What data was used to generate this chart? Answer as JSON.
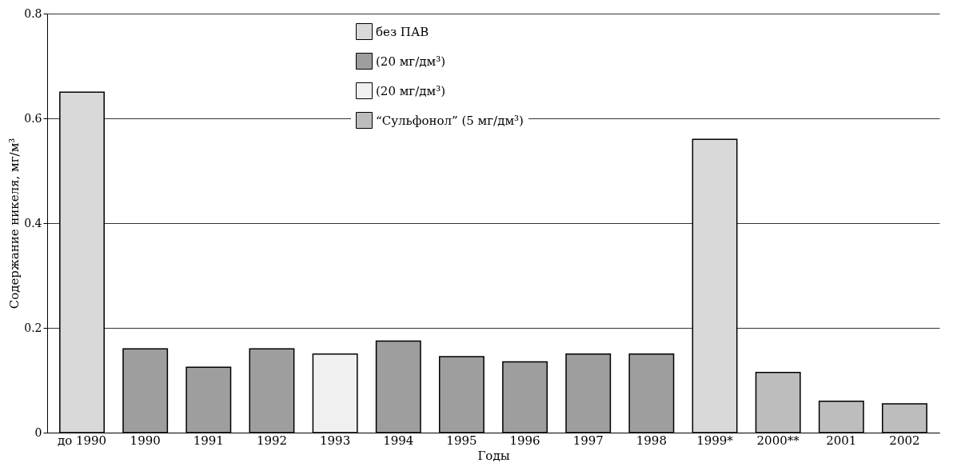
{
  "chart_data": {
    "type": "bar",
    "xlabel": "Годы",
    "ylabel": "Содержание никеля, мг/м³",
    "categories": [
      "до 1990",
      "1990",
      "1991",
      "1992",
      "1993",
      "1994",
      "1995",
      "1996",
      "1997",
      "1998",
      "1999*",
      "2000**",
      "2001",
      "2002"
    ],
    "series": [
      {
        "name": "без ПАВ",
        "color": "#d9d9d9",
        "values": [
          0.65,
          null,
          null,
          null,
          null,
          null,
          null,
          null,
          null,
          null,
          0.56,
          null,
          null,
          null
        ]
      },
      {
        "name": "(20 мг/дм³)",
        "color": "#9e9e9e",
        "values": [
          null,
          0.16,
          0.125,
          0.16,
          null,
          0.175,
          0.145,
          0.135,
          0.15,
          0.15,
          null,
          null,
          null,
          null
        ]
      },
      {
        "name": "(20 мг/дм³)",
        "color": "#f0f0f0",
        "values": [
          null,
          null,
          null,
          null,
          0.15,
          null,
          null,
          null,
          null,
          null,
          null,
          null,
          null,
          null
        ]
      },
      {
        "name": "“Сульфонол” (5 мг/дм³)",
        "color": "#bdbdbd",
        "values": [
          null,
          null,
          null,
          null,
          null,
          null,
          null,
          null,
          null,
          null,
          null,
          0.115,
          0.06,
          0.055
        ]
      }
    ],
    "ylim": [
      0,
      0.8
    ],
    "yticks": [
      0,
      0.2,
      0.4,
      0.6,
      0.8
    ],
    "grid": "y",
    "legend": "top"
  }
}
